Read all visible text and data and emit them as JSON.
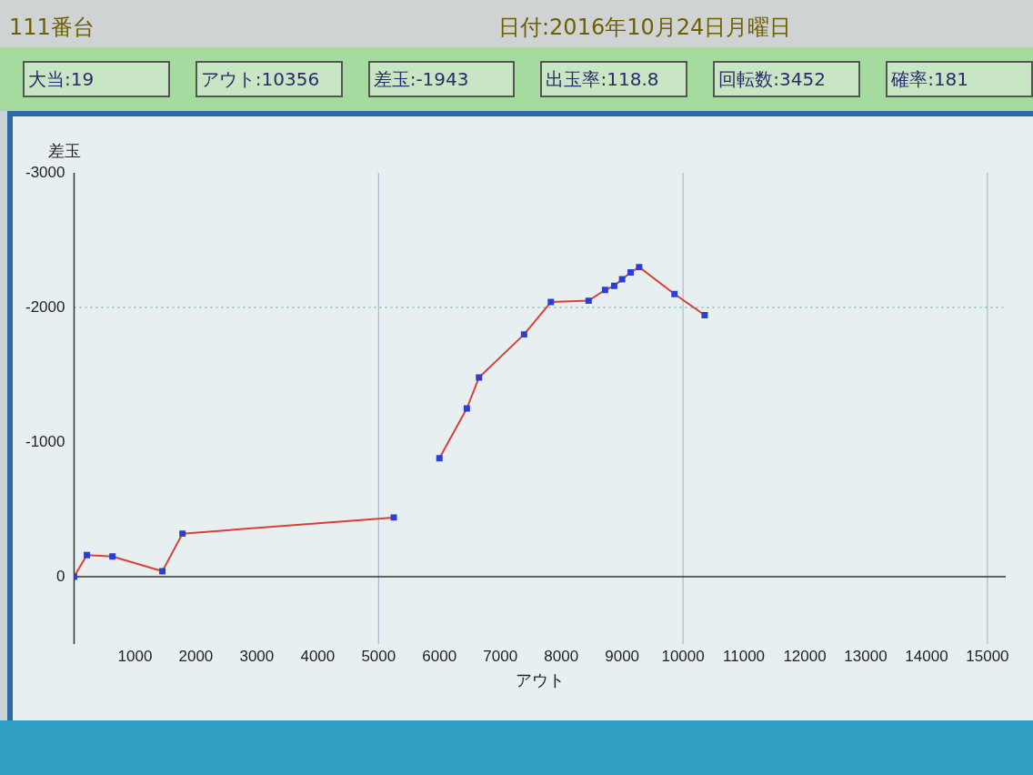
{
  "chart_data": {
    "type": "line",
    "title": "111番台",
    "subtitle": "日付:2016年10月24日月曜日",
    "annotations": [
      "大当:19",
      "アウト:10356",
      "差玉:-1943",
      "出玉率:118.8",
      "回転数:3452",
      "確率:181"
    ],
    "xlabel": "アウト",
    "ylabel": "差玉",
    "x": [
      0,
      210,
      630,
      1450,
      1780,
      5250,
      5600,
      6000,
      6450,
      6650,
      7390,
      7830,
      8450,
      8720,
      8870,
      9000,
      9140,
      9280,
      9860,
      10356
    ],
    "series": [
      {
        "color": "#d9403a",
        "values": [
          0,
          -160,
          -150,
          -40,
          -320,
          -440,
          null,
          -880,
          -1250,
          -1480,
          -1800,
          -2040,
          -2050,
          -2130,
          -2160,
          -2210,
          -2260,
          -2300,
          -2100,
          -1943
        ]
      }
    ],
    "xlim": [
      0,
      15300
    ],
    "xticks": [
      1000,
      2000,
      3000,
      4000,
      5000,
      6000,
      7000,
      8000,
      9000,
      10000,
      11000,
      12000,
      13000,
      14000,
      15000
    ],
    "ylim": [
      500,
      -3000
    ],
    "yticks": [
      0,
      -1000,
      -2000,
      -3000
    ],
    "ref_lines": [
      {
        "axis": "x",
        "value": 5000,
        "color": "#9fb0c0",
        "line_style": "solid"
      },
      {
        "axis": "x",
        "value": 10000,
        "color": "#9fb0c0",
        "line_style": "solid"
      },
      {
        "axis": "x",
        "value": 15000,
        "color": "#9fb0c0",
        "line_style": "solid"
      },
      {
        "axis": "y",
        "value": -2000,
        "color": "#3bb07a",
        "line_style": "dotted"
      }
    ],
    "grid": false,
    "legend": false,
    "marker": "square",
    "line_style": "solid"
  }
}
